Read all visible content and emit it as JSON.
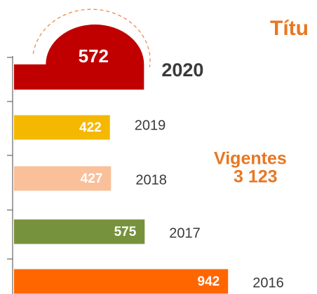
{
  "chart_data": {
    "type": "bar",
    "orientation": "horizontal",
    "title": "Títu",
    "annotations": [
      "Vigentes",
      "3 123"
    ],
    "categories": [
      "2020",
      "2019",
      "2018",
      "2017",
      "2016"
    ],
    "values": [
      572,
      422,
      427,
      575,
      942
    ],
    "colors": [
      "#c00000",
      "#f5b800",
      "#f9c09a",
      "#77923c",
      "#ff6600"
    ],
    "xlim": [
      0,
      1000
    ]
  }
}
